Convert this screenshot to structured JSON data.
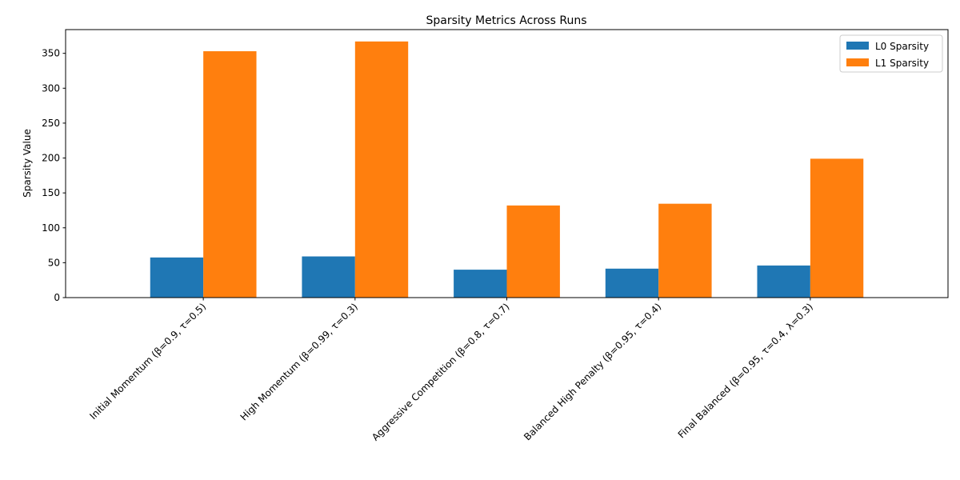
{
  "chart_data": {
    "type": "bar",
    "title": "Sparsity Metrics Across Runs",
    "xlabel": "",
    "ylabel": "Sparsity Value",
    "categories": [
      "Initial Momentum (β=0.9, τ=0.5)",
      "High Momentum (β=0.99, τ=0.3)",
      "Aggressive Competition (β=0.8, τ=0.7)",
      "Balanced High Penalty (β=0.95, τ=0.4)",
      "Final Balanced (β=0.95, τ=0.4, λ=0.3)"
    ],
    "series": [
      {
        "name": "L0 Sparsity",
        "color": "#1f77b4",
        "values": [
          57.5,
          59,
          40,
          41.5,
          46
        ]
      },
      {
        "name": "L1 Sparsity",
        "color": "#ff7f0e",
        "values": [
          353,
          367,
          132,
          134.5,
          199
        ]
      }
    ],
    "ylim": [
      0,
      384
    ],
    "yticks": [
      0,
      50,
      100,
      150,
      200,
      250,
      300,
      350
    ],
    "legend": "top-right",
    "grid": false
  }
}
